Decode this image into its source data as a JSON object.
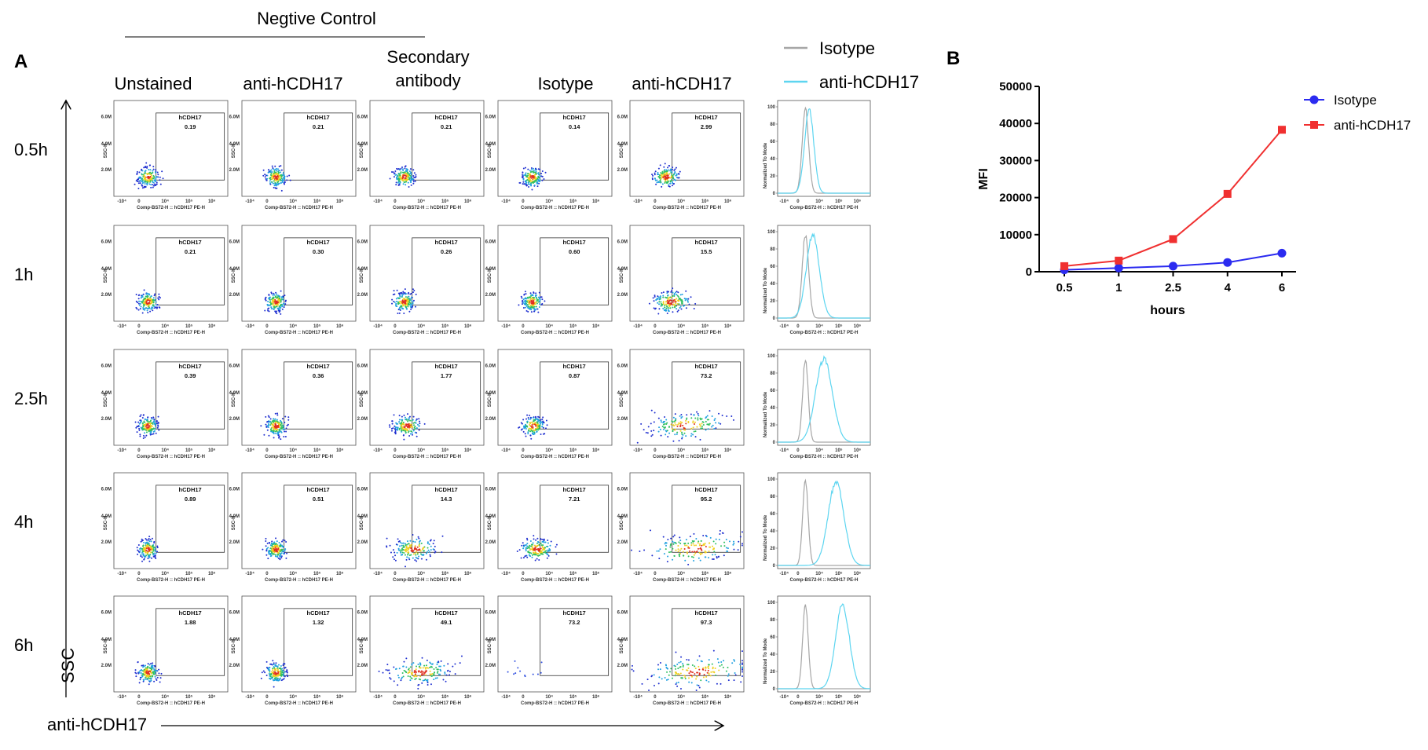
{
  "panel_a": {
    "label": "A",
    "group_header": "Negtive Control",
    "column_headers": [
      "Unstained",
      "anti-hCDH17",
      "Secondary antibody",
      "Isotype",
      "anti-hCDH17"
    ],
    "row_labels": [
      "0.5h",
      "1h",
      "2.5h",
      "4h",
      "6h"
    ],
    "gates": [
      [
        "0.19",
        "0.21",
        "0.21",
        "0.14",
        "2.99"
      ],
      [
        "0.21",
        "0.30",
        "0.26",
        "0.60",
        "15.5"
      ],
      [
        "0.39",
        "0.36",
        "1.77",
        "0.87",
        "73.2"
      ],
      [
        "0.89",
        "0.51",
        "14.3",
        "7.21",
        "95.2"
      ],
      [
        "1.88",
        "1.32",
        "49.1",
        "73.2",
        "97.3"
      ]
    ],
    "dot_plot": {
      "gate_name": "hCDH17",
      "y_title": "SSC-H",
      "x_title": "Comp-BS72-H :: hCDH17 PE-H",
      "y_tick_labels": [
        "6.0M",
        "4.0M",
        "2.0M"
      ],
      "x_tick_labels": [
        "-10⁴",
        "0",
        "10⁴",
        "10⁵",
        "10⁶"
      ]
    },
    "histogram": {
      "y_title": "Normalized To Mode",
      "ylim": [
        0,
        100
      ],
      "yticks": [
        0,
        20,
        40,
        60,
        80,
        100
      ],
      "x_title": "Comp-BS72-H :: hCDH17 PE-H",
      "x_tick_labels": [
        "-10⁴",
        "0",
        "10⁴",
        "10⁵",
        "10⁶"
      ],
      "legend": [
        {
          "name": "Isotype",
          "color": "#a6a6a6"
        },
        {
          "name": "anti-hCDH17",
          "color": "#5dd5f0"
        }
      ]
    },
    "y_axis_label": "SSC",
    "x_axis_label": "anti-hCDH17"
  },
  "panel_b": {
    "label": "B",
    "chart_data": {
      "type": "line",
      "categories": [
        "0.5",
        "1",
        "2.5",
        "4",
        "6"
      ],
      "series": [
        {
          "name": "Isotype",
          "color": "#2b2bf0",
          "marker": "circle",
          "values": [
            500,
            1000,
            1500,
            2500,
            5000
          ]
        },
        {
          "name": "anti-hCDH17",
          "color": "#f03030",
          "marker": "square",
          "values": [
            1500,
            3000,
            8800,
            21000,
            38300
          ]
        }
      ],
      "ylim": [
        0,
        50000
      ],
      "yticks": [
        0,
        10000,
        20000,
        30000,
        40000,
        50000
      ],
      "x_label": "hours",
      "y_label": "MFI",
      "legend": "top-right"
    }
  }
}
